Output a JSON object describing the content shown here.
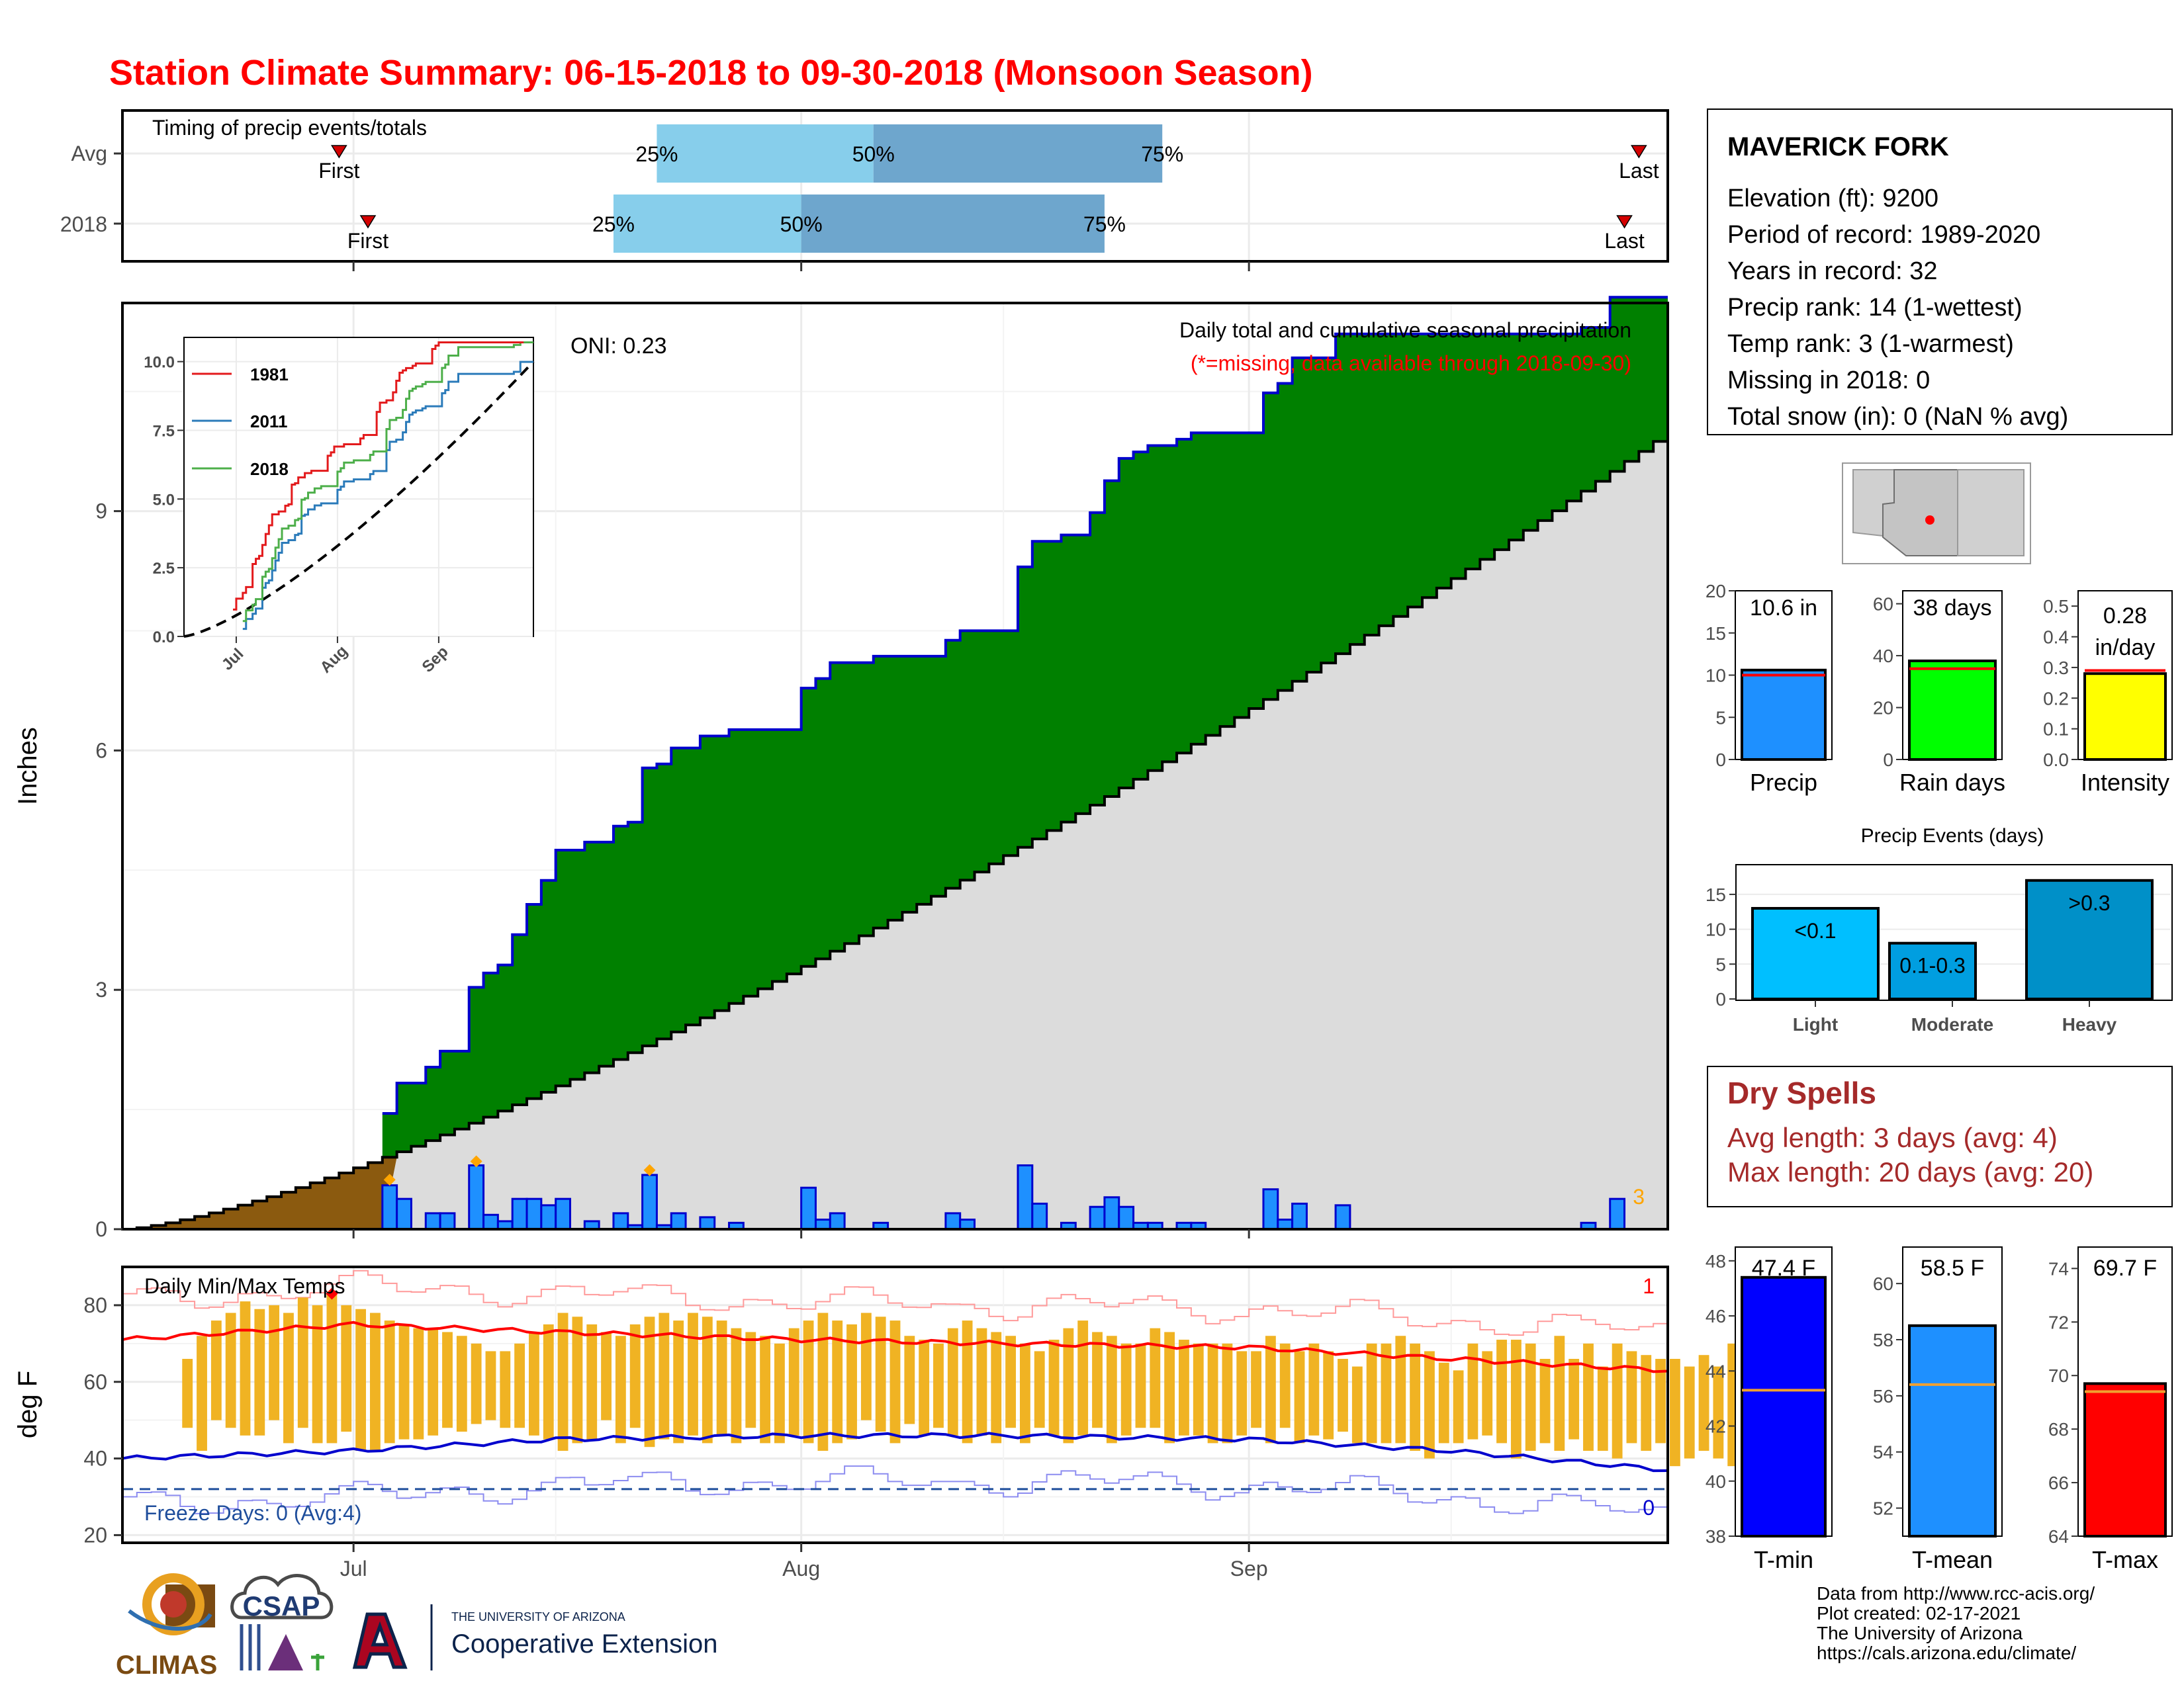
{
  "title": "Station Climate Summary: 06-15-2018 to 09-30-2018 (Monsoon Season)",
  "timing": {
    "title": "Timing of precip events/totals",
    "rows": [
      {
        "label": "Avg",
        "first": "First",
        "last": "Last",
        "p25": "25%",
        "p50": "50%",
        "p75": "75%"
      },
      {
        "label": "2018",
        "first": "First",
        "last": "Last",
        "p25": "25%",
        "p50": "50%",
        "p75": "75%"
      }
    ],
    "dates": {
      "Avg": {
        "first": "2018-06-30",
        "p25": "2018-07-22",
        "p50": "2018-08-06",
        "p75": "2018-08-26",
        "last": "2018-09-28"
      },
      "2018": {
        "first": "2018-07-02",
        "p25": "2018-07-19",
        "p50": "2018-08-01",
        "p75": "2018-08-22",
        "last": "2018-09-27"
      }
    }
  },
  "precip": {
    "ylabel": "Inches",
    "caption1": "Daily total and cumulative seasonal precipitation",
    "caption2": "(*=missing, data available through 2018-09-30)",
    "oni": "ONI: 0.23",
    "corner_count": "3",
    "yticks": [
      0,
      3,
      6,
      9
    ],
    "xticks": [
      "Jul",
      "Aug",
      "Sep"
    ]
  },
  "inset": {
    "legend": [
      "1981",
      "2011",
      "2018"
    ],
    "colors": {
      "1981": "#e31a1c",
      "2011": "#2b7bba",
      "2018": "#4daf4a"
    },
    "yticks": [
      "0.0",
      "2.5",
      "5.0",
      "7.5",
      "10.0"
    ],
    "xticks": [
      "Jul",
      "Aug",
      "Sep"
    ]
  },
  "temps": {
    "ylabel": "deg F",
    "title": "Daily Min/Max Temps",
    "freeze": "Freeze Days: 0 (Avg:4)",
    "corner_top": "1",
    "corner_bottom": "0",
    "yticks": [
      20,
      40,
      60,
      80
    ],
    "xticks": [
      "Jul",
      "Aug",
      "Sep"
    ]
  },
  "station": {
    "name": "MAVERICK FORK",
    "lines": [
      "Elevation (ft): 9200",
      "Period of record: 1989-2020",
      "Years in record: 32",
      "Precip rank: 14 (1-wettest)",
      "Temp rank: 3 (1-warmest)",
      "Missing in 2018: 0",
      "Total snow (in): 0 (NaN % avg)"
    ]
  },
  "summary_bars": [
    {
      "label": "Precip",
      "value_label": "10.6 in",
      "value": 10.6,
      "avg": 10.0,
      "ymax": 20,
      "yticks": [
        "0",
        "5",
        "10",
        "15",
        "20"
      ],
      "color": "#1e90ff"
    },
    {
      "label": "Rain days",
      "value_label": "38 days",
      "value": 38,
      "avg": 35,
      "ymax": 65,
      "yticks": [
        "0",
        "20",
        "40",
        "60"
      ],
      "color": "#00ff00"
    },
    {
      "label": "Intensity",
      "value_label": "0.28 in/day",
      "value": 0.28,
      "avg": 0.29,
      "ymax": 0.55,
      "yticks": [
        "0.0",
        "0.1",
        "0.2",
        "0.3",
        "0.4",
        "0.5"
      ],
      "color": "#ffff00"
    }
  ],
  "events": {
    "title": "Precip Events (days)",
    "yticks": [
      "0",
      "5",
      "10",
      "15"
    ],
    "bars": [
      {
        "category": "Light",
        "label": "<0.1",
        "value": 13,
        "color": "#00bfff"
      },
      {
        "category": "Moderate",
        "label": "0.1-0.3",
        "value": 8,
        "color": "#009ee0"
      },
      {
        "category": "Heavy",
        "label": ">0.3",
        "value": 17,
        "color": "#0090c8"
      }
    ]
  },
  "dry_spells": {
    "title": "Dry Spells",
    "avg": "Avg length: 3 days (avg: 4)",
    "max": "Max length: 20 days (avg: 20)"
  },
  "temp_bars": [
    {
      "label": "T-min",
      "value_label": "47.4 F",
      "value": 47.4,
      "avg": 43.3,
      "ymin": 38,
      "ymax": 48.5,
      "yticks": [
        38,
        40,
        42,
        44,
        46,
        48
      ],
      "color": "#0000ff"
    },
    {
      "label": "T-mean",
      "value_label": "58.5 F",
      "value": 58.5,
      "avg": 56.4,
      "ymin": 51,
      "ymax": 61.3,
      "yticks": [
        52,
        54,
        56,
        58,
        60
      ],
      "color": "#1e90ff"
    },
    {
      "label": "T-max",
      "value_label": "69.7 F",
      "value": 69.7,
      "avg": 69.4,
      "ymin": 64,
      "ymax": 74.8,
      "yticks": [
        64,
        66,
        68,
        70,
        72,
        74
      ],
      "color": "#ff0000"
    }
  ],
  "footer": {
    "credits": [
      "Data from http://www.rcc-acis.org/",
      "Plot created: 02-17-2021",
      "The University of Arizona",
      "https://cals.arizona.edu/climate/"
    ],
    "logos": {
      "climas": "CLIMAS",
      "csap": "CSAP",
      "ua_small": "THE UNIVERSITY OF ARIZONA",
      "ua_big": "Cooperative Extension",
      "ua_letter": "A"
    }
  },
  "chart_data": [
    {
      "type": "area",
      "title": "Daily total and cumulative seasonal precipitation",
      "ylabel": "Inches",
      "ylim": [
        0,
        10.5
      ],
      "x_start": "2018-06-15",
      "x_end": "2018-09-30",
      "series": [
        {
          "name": "2018",
          "daily_precip": [
            {
              "date": "2018-07-03",
              "value": 0.55
            },
            {
              "date": "2018-07-04",
              "value": 0.38
            },
            {
              "date": "2018-07-06",
              "value": 0.2
            },
            {
              "date": "2018-07-07",
              "value": 0.2
            },
            {
              "date": "2018-07-09",
              "value": 0.8
            },
            {
              "date": "2018-07-10",
              "value": 0.18
            },
            {
              "date": "2018-07-11",
              "value": 0.1
            },
            {
              "date": "2018-07-12",
              "value": 0.38
            },
            {
              "date": "2018-07-13",
              "value": 0.38
            },
            {
              "date": "2018-07-14",
              "value": 0.3
            },
            {
              "date": "2018-07-15",
              "value": 0.38
            },
            {
              "date": "2018-07-17",
              "value": 0.1
            },
            {
              "date": "2018-07-19",
              "value": 0.2
            },
            {
              "date": "2018-07-20",
              "value": 0.05
            },
            {
              "date": "2018-07-21",
              "value": 0.68
            },
            {
              "date": "2018-07-22",
              "value": 0.05
            },
            {
              "date": "2018-07-23",
              "value": 0.2
            },
            {
              "date": "2018-07-25",
              "value": 0.15
            },
            {
              "date": "2018-07-27",
              "value": 0.08
            },
            {
              "date": "2018-08-01",
              "value": 0.52
            },
            {
              "date": "2018-08-02",
              "value": 0.12
            },
            {
              "date": "2018-08-03",
              "value": 0.2
            },
            {
              "date": "2018-08-06",
              "value": 0.08
            },
            {
              "date": "2018-08-11",
              "value": 0.2
            },
            {
              "date": "2018-08-12",
              "value": 0.12
            },
            {
              "date": "2018-08-16",
              "value": 0.8
            },
            {
              "date": "2018-08-17",
              "value": 0.32
            },
            {
              "date": "2018-08-19",
              "value": 0.08
            },
            {
              "date": "2018-08-21",
              "value": 0.28
            },
            {
              "date": "2018-08-22",
              "value": 0.4
            },
            {
              "date": "2018-08-23",
              "value": 0.28
            },
            {
              "date": "2018-08-24",
              "value": 0.08
            },
            {
              "date": "2018-08-25",
              "value": 0.08
            },
            {
              "date": "2018-08-27",
              "value": 0.08
            },
            {
              "date": "2018-08-28",
              "value": 0.08
            },
            {
              "date": "2018-09-02",
              "value": 0.5
            },
            {
              "date": "2018-09-03",
              "value": 0.12
            },
            {
              "date": "2018-09-04",
              "value": 0.32
            },
            {
              "date": "2018-09-07",
              "value": 0.3
            },
            {
              "date": "2018-09-24",
              "value": 0.08
            },
            {
              "date": "2018-09-26",
              "value": 0.38
            }
          ]
        },
        {
          "name": "Avg",
          "cumulative_end": 10.0
        }
      ]
    },
    {
      "type": "line",
      "ylabel": "deg F",
      "title": "Daily Min/Max Temps",
      "ylim": [
        18,
        90
      ],
      "series": [
        {
          "name": "2018 daily max",
          "start": "2018-06-19",
          "values": [
            66,
            72,
            76,
            78,
            81,
            79,
            80,
            78,
            82,
            80,
            83,
            80,
            79,
            78,
            76,
            75,
            74,
            74,
            73,
            72,
            70,
            68,
            68,
            70,
            73,
            75,
            78,
            77,
            75,
            73,
            72,
            75,
            77,
            78,
            76,
            78,
            77,
            76,
            74,
            73,
            72,
            70,
            74,
            76,
            78,
            76,
            75,
            78,
            77,
            76,
            72,
            71,
            70,
            74,
            76,
            74,
            73,
            72,
            70,
            68,
            71,
            74,
            76,
            73,
            72,
            70,
            70,
            74,
            73,
            71,
            70,
            70,
            70,
            68,
            68,
            72,
            70,
            68,
            70,
            68,
            66,
            64,
            70,
            70,
            72,
            70,
            68,
            65,
            63,
            70,
            68,
            71,
            71,
            70,
            66,
            72,
            66,
            70,
            64,
            70,
            68,
            67,
            66,
            66,
            64,
            67,
            64,
            70,
            66,
            65,
            64
          ]
        },
        {
          "name": "2018 daily min",
          "start": "2018-06-19",
          "values": [
            48,
            42,
            50,
            48,
            46,
            46,
            50,
            44,
            48,
            44,
            44,
            47,
            42,
            42,
            44,
            45,
            45,
            46,
            48,
            47,
            49,
            50,
            48,
            48,
            46,
            45,
            42,
            44,
            45,
            50,
            44,
            48,
            43,
            45,
            44,
            46,
            44,
            46,
            44,
            48,
            44,
            44,
            46,
            44,
            42,
            44,
            45,
            50,
            47,
            44,
            49,
            46,
            48,
            46,
            44,
            46,
            44,
            48,
            44,
            48,
            46,
            44,
            46,
            48,
            44,
            46,
            48,
            48,
            44,
            46,
            46,
            44,
            44,
            46,
            48,
            44,
            48,
            44,
            46,
            45,
            47,
            44,
            44,
            44,
            44,
            42,
            40,
            44,
            44,
            45,
            46,
            44,
            40,
            42,
            44,
            42,
            45,
            42,
            42,
            40,
            44,
            42,
            44,
            38,
            40,
            42,
            40,
            38,
            42,
            44,
            42
          ]
        },
        {
          "name": "Avg max",
          "x": [
            "2018-06-15",
            "2018-07-01",
            "2018-07-15",
            "2018-08-01",
            "2018-08-15",
            "2018-09-01",
            "2018-09-15",
            "2018-09-30"
          ],
          "values": [
            71,
            75,
            73,
            71,
            70,
            69,
            66,
            63
          ]
        },
        {
          "name": "Avg min",
          "x": [
            "2018-06-15",
            "2018-07-01",
            "2018-07-15",
            "2018-08-01",
            "2018-08-15",
            "2018-09-01",
            "2018-09-15",
            "2018-09-30"
          ],
          "values": [
            40,
            42,
            45,
            46,
            46,
            45,
            42,
            37
          ]
        },
        {
          "name": "Freeze line",
          "values": [
            32
          ]
        }
      ]
    },
    {
      "type": "bar",
      "title": "Precip Events (days)",
      "categories": [
        "Light",
        "Moderate",
        "Heavy"
      ],
      "values": [
        13,
        8,
        17
      ],
      "ylim": [
        0,
        18
      ]
    },
    {
      "type": "bar",
      "categories": [
        "Precip",
        "Rain days",
        "Intensity"
      ],
      "values": [
        10.6,
        38,
        0.28
      ]
    },
    {
      "type": "bar",
      "categories": [
        "T-min",
        "T-mean",
        "T-max"
      ],
      "values": [
        47.4,
        58.5,
        69.7
      ]
    }
  ]
}
